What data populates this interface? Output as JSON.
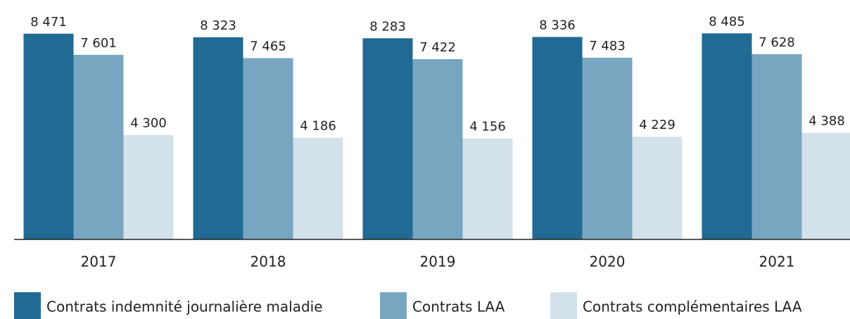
{
  "chart_data": {
    "type": "bar",
    "categories": [
      "2017",
      "2018",
      "2019",
      "2020",
      "2021"
    ],
    "series": [
      {
        "name": "Contrats indemnité journalière maladie",
        "color": "#206a93",
        "values": [
          8471,
          8323,
          8283,
          8336,
          8485
        ],
        "value_labels": [
          "8 471",
          "8 323",
          "8 283",
          "8 336",
          "8 485"
        ]
      },
      {
        "name": "Contrats LAA",
        "color": "#78a6c1",
        "values": [
          7601,
          7465,
          7422,
          7483,
          7628
        ],
        "value_labels": [
          "7 601",
          "7 465",
          "7 422",
          "7 483",
          "7 628"
        ]
      },
      {
        "name": "Contrats complémentaires LAA",
        "color": "#d3e1ea",
        "values": [
          4300,
          4186,
          4156,
          4229,
          4388
        ],
        "value_labels": [
          "4 300",
          "4 186",
          "4 156",
          "4 229",
          "4 388"
        ]
      }
    ],
    "ylim": [
      0,
      9800
    ]
  }
}
